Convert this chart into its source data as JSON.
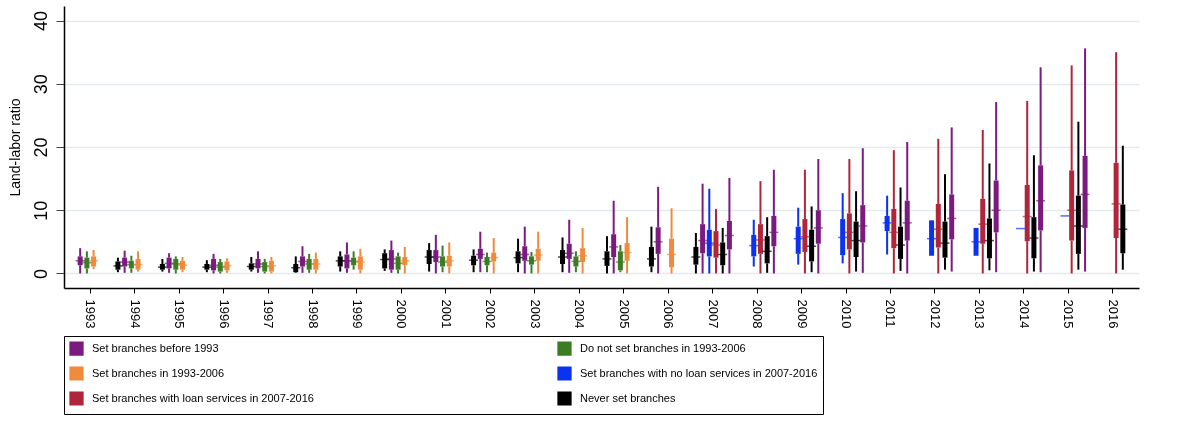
{
  "chart_data": {
    "type": "box",
    "ylabel": "Land-labor ratio",
    "categories": [
      "1993",
      "1994",
      "1995",
      "1996",
      "1997",
      "1998",
      "1999",
      "2000",
      "2001",
      "2002",
      "2003",
      "2004",
      "2005",
      "2006",
      "2007",
      "2008",
      "2009",
      "2010",
      "2011",
      "2012",
      "2013",
      "2014",
      "2015",
      "2016"
    ],
    "ylim": [
      -2.3,
      42.3
    ],
    "yticks": [
      0,
      10,
      20,
      30,
      40
    ],
    "grid": "y",
    "legend": "bottom",
    "series": [
      {
        "name": "Set branches before 1993",
        "color": "#7b1a7f",
        "boxes": [
          {
            "low": 0,
            "q1": 1.3,
            "median": 2.0,
            "q3": 2.7,
            "high": 4.0
          },
          {
            "low": 0.1,
            "q1": 1.1,
            "median": 1.8,
            "q3": 2.5,
            "high": 3.6
          },
          {
            "low": 0.1,
            "q1": 0.8,
            "median": 1.6,
            "q3": 2.5,
            "high": 3.2
          },
          {
            "low": 0,
            "q1": 0.5,
            "median": 1.3,
            "q3": 2.3,
            "high": 3.1
          },
          {
            "low": 0.1,
            "q1": 0.8,
            "median": 1.5,
            "q3": 2.3,
            "high": 3.5
          },
          {
            "low": 0.1,
            "q1": 1.1,
            "median": 1.9,
            "q3": 2.7,
            "high": 4.3
          },
          {
            "low": 0.1,
            "q1": 0.8,
            "median": 2.0,
            "q3": 3.0,
            "high": 4.9
          },
          {
            "low": 0.1,
            "q1": 0.6,
            "median": 2.3,
            "q3": 3.7,
            "high": 5.2
          },
          {
            "low": 0,
            "q1": 1.8,
            "median": 2.6,
            "q3": 3.7,
            "high": 6.1
          },
          {
            "low": 0.2,
            "q1": 2.3,
            "median": 3.0,
            "q3": 3.9,
            "high": 6.6
          },
          {
            "low": 0,
            "q1": 2.0,
            "median": 3.0,
            "q3": 4.3,
            "high": 7.4
          },
          {
            "low": 0.1,
            "q1": 2.3,
            "median": 3.2,
            "q3": 4.7,
            "high": 8.5
          },
          {
            "low": 0,
            "q1": 2.6,
            "median": 4.2,
            "q3": 6.2,
            "high": 11.5
          },
          {
            "low": 0,
            "q1": 3.1,
            "median": 5.0,
            "q3": 7.3,
            "high": 13.7
          },
          {
            "low": 0,
            "q1": 3.2,
            "median": 5.2,
            "q3": 7.8,
            "high": 14.2
          },
          null,
          null,
          null,
          null,
          null,
          null,
          null,
          null,
          null
        ]
      },
      {
        "name": "Do not set branches in 1993-2006",
        "color": "#3a7d22",
        "boxes": [
          {
            "low": 0,
            "q1": 0.8,
            "median": 1.7,
            "q3": 2.5,
            "high": 3.5
          },
          {
            "low": 0.1,
            "q1": 0.8,
            "median": 1.4,
            "q3": 2.0,
            "high": 2.8
          },
          {
            "low": 0,
            "q1": 0.6,
            "median": 1.5,
            "q3": 2.3,
            "high": 2.7
          },
          {
            "low": 0,
            "q1": 0.3,
            "median": 1.0,
            "q3": 1.8,
            "high": 2.3
          },
          {
            "low": 0,
            "q1": 0.3,
            "median": 1.1,
            "q3": 1.8,
            "high": 2.3
          },
          {
            "low": 0.1,
            "q1": 0.6,
            "median": 1.5,
            "q3": 2.3,
            "high": 3.1
          },
          {
            "low": 0.6,
            "q1": 1.3,
            "median": 1.9,
            "q3": 2.5,
            "high": 3.5
          },
          {
            "low": 0,
            "q1": 0.6,
            "median": 1.6,
            "q3": 2.7,
            "high": 3.3
          },
          {
            "low": 0.2,
            "q1": 1.1,
            "median": 1.8,
            "q3": 2.7,
            "high": 4.4
          },
          {
            "low": 0.2,
            "q1": 1.3,
            "median": 1.9,
            "q3": 2.6,
            "high": 3.3
          },
          {
            "low": 0,
            "q1": 1.4,
            "median": 2.0,
            "q3": 2.7,
            "high": 3.4
          },
          {
            "low": 0.2,
            "q1": 1.1,
            "median": 1.9,
            "q3": 2.7,
            "high": 3.5
          },
          {
            "low": 0.2,
            "q1": 0.5,
            "median": 1.8,
            "q3": 3.5,
            "high": 4.5
          },
          null,
          null,
          null,
          null,
          null,
          null,
          null,
          null,
          null,
          null,
          null
        ]
      },
      {
        "name": "Set branches in 1993-2006",
        "color": "#f08a3c",
        "boxes": [
          {
            "low": 0.7,
            "q1": 1.1,
            "median": 2.0,
            "q3": 2.7,
            "high": 3.7
          },
          {
            "low": 0.3,
            "q1": 0.6,
            "median": 1.4,
            "q3": 2.3,
            "high": 3.5
          },
          {
            "low": 0.2,
            "q1": 0.6,
            "median": 1.3,
            "q3": 2.0,
            "high": 2.6
          },
          {
            "low": 0.1,
            "q1": 0.5,
            "median": 1.2,
            "q3": 1.9,
            "high": 2.4
          },
          {
            "low": 0,
            "q1": 0.3,
            "median": 1.2,
            "q3": 2.0,
            "high": 2.6
          },
          {
            "low": 0,
            "q1": 0.6,
            "median": 1.5,
            "q3": 2.3,
            "high": 3.3
          },
          {
            "low": 0,
            "q1": 0.6,
            "median": 1.8,
            "q3": 2.7,
            "high": 3.9
          },
          {
            "low": 0,
            "q1": 1.3,
            "median": 2.0,
            "q3": 2.6,
            "high": 4.2
          },
          {
            "low": 0,
            "q1": 1.1,
            "median": 2.0,
            "q3": 2.8,
            "high": 4.9
          },
          {
            "low": 0,
            "q1": 1.9,
            "median": 2.5,
            "q3": 3.3,
            "high": 5.6
          },
          {
            "low": 0,
            "q1": 2.0,
            "median": 2.9,
            "q3": 3.9,
            "high": 6.6
          },
          {
            "low": 0,
            "q1": 1.8,
            "median": 2.8,
            "q3": 4.0,
            "high": 7.2
          },
          {
            "low": 0,
            "q1": 2.0,
            "median": 3.3,
            "q3": 4.8,
            "high": 8.9
          },
          {
            "low": 0,
            "q1": 1.0,
            "median": 3.0,
            "q3": 5.5,
            "high": 10.3
          },
          null,
          null,
          null,
          null,
          null,
          null,
          null,
          null,
          null,
          null
        ]
      },
      {
        "name": "Set branches with no loan services in 2007-2016",
        "color": "#0a32f0",
        "boxes": [
          null,
          null,
          null,
          null,
          null,
          null,
          null,
          null,
          null,
          null,
          null,
          null,
          null,
          null,
          {
            "low": 0,
            "q1": 2.7,
            "median": 4.8,
            "q3": 6.9,
            "high": 13.4
          },
          {
            "low": 1.1,
            "q1": 2.7,
            "median": 4.4,
            "q3": 6.1,
            "high": 8.5
          },
          {
            "low": 1.4,
            "q1": 3.1,
            "median": 5.5,
            "q3": 7.4,
            "high": 10.4
          },
          {
            "low": 1.6,
            "q1": 2.9,
            "median": 5.7,
            "q3": 8.6,
            "high": 12.7
          },
          {
            "low": 3.0,
            "q1": 6.7,
            "median": 8.0,
            "q3": 9.1,
            "high": 12.3
          },
          {
            "low": 2.8,
            "q1": 2.8,
            "median": 5.5,
            "q3": 8.4,
            "high": 8.4
          },
          {
            "low": 2.8,
            "q1": 2.8,
            "median": 5.0,
            "q3": 7.2,
            "high": 7.2
          },
          {
            "low": 7.1,
            "q1": 7.1,
            "median": 7.1,
            "q3": 7.1,
            "high": 7.1
          },
          {
            "low": 9.1,
            "q1": 9.1,
            "median": 9.1,
            "q3": 9.1,
            "high": 9.1
          },
          null
        ]
      },
      {
        "name": "Set branches with loan services in 2007-2016",
        "color": "#b0253a",
        "boxes": [
          null,
          null,
          null,
          null,
          null,
          null,
          null,
          null,
          null,
          null,
          null,
          null,
          null,
          null,
          {
            "low": 0,
            "q1": 2.5,
            "median": 4.5,
            "q3": 6.7,
            "high": 10.2
          },
          {
            "low": 0,
            "q1": 3.1,
            "median": 5.3,
            "q3": 7.8,
            "high": 14.6
          },
          {
            "low": 0,
            "q1": 3.4,
            "median": 5.8,
            "q3": 8.6,
            "high": 16.4
          },
          {
            "low": 0,
            "q1": 3.8,
            "median": 6.5,
            "q3": 9.5,
            "high": 18.1
          },
          {
            "low": 0,
            "q1": 4.0,
            "median": 6.5,
            "q3": 10.2,
            "high": 19.5
          },
          {
            "low": 0,
            "q1": 4.1,
            "median": 7.0,
            "q3": 11.0,
            "high": 21.3
          },
          {
            "low": 0,
            "q1": 4.7,
            "median": 7.8,
            "q3": 11.8,
            "high": 22.7
          },
          {
            "low": 0,
            "q1": 5.1,
            "median": 9.0,
            "q3": 14.0,
            "high": 27.3
          },
          {
            "low": 0,
            "q1": 5.2,
            "median": 10.0,
            "q3": 16.3,
            "high": 32.9
          },
          {
            "low": 0,
            "q1": 5.6,
            "median": 11.0,
            "q3": 17.5,
            "high": 35.0
          }
        ]
      },
      {
        "name": "Never set branches",
        "color": "#000000",
        "boxes": [
          null,
          {
            "low": 0.2,
            "q1": 0.6,
            "median": 1.2,
            "q3": 1.9,
            "high": 2.5
          },
          {
            "low": 0.3,
            "q1": 0.6,
            "median": 1.0,
            "q3": 1.5,
            "high": 2.3
          },
          {
            "low": 0.2,
            "q1": 0.6,
            "median": 1.0,
            "q3": 1.5,
            "high": 2.1
          },
          {
            "low": 0.3,
            "q1": 0.6,
            "median": 1.1,
            "q3": 1.6,
            "high": 2.6
          },
          {
            "low": 0.1,
            "q1": 0.2,
            "median": 0.9,
            "q3": 1.5,
            "high": 2.7
          },
          {
            "low": 0.3,
            "q1": 1.1,
            "median": 2.0,
            "q3": 2.7,
            "high": 3.5
          },
          {
            "low": 0.4,
            "q1": 0.8,
            "median": 2.2,
            "q3": 3.2,
            "high": 3.8
          },
          {
            "low": 0.3,
            "q1": 1.5,
            "median": 2.6,
            "q3": 3.7,
            "high": 4.8
          },
          {
            "low": 0.2,
            "q1": 1.3,
            "median": 2.1,
            "q3": 2.8,
            "high": 3.8
          },
          {
            "low": 0.2,
            "q1": 1.6,
            "median": 2.5,
            "q3": 3.5,
            "high": 5.5
          },
          {
            "low": 0.2,
            "q1": 1.5,
            "median": 2.6,
            "q3": 3.7,
            "high": 5.7
          },
          {
            "low": 0,
            "q1": 1.2,
            "median": 2.3,
            "q3": 3.5,
            "high": 5.9
          },
          {
            "low": 0.2,
            "q1": 1.1,
            "median": 2.3,
            "q3": 4.2,
            "high": 7.4
          },
          {
            "low": 0,
            "q1": 1.4,
            "median": 2.6,
            "q3": 4.2,
            "high": 6.4
          },
          null,
          null,
          null,
          null,
          null,
          null,
          null,
          null,
          null
        ]
      },
      {
        "color": "#000000",
        "boxes": [
          null,
          null,
          null,
          null,
          null,
          null,
          null,
          null,
          null,
          null,
          null,
          null,
          null,
          null,
          {
            "low": 0,
            "q1": 1.3,
            "median": 3.0,
            "q3": 4.9,
            "high": 7.2
          },
          {
            "low": 0.1,
            "q1": 1.6,
            "median": 3.5,
            "q3": 5.9,
            "high": 8.9
          },
          {
            "low": 0.2,
            "q1": 1.9,
            "median": 4.3,
            "q3": 6.9,
            "high": 10.6
          },
          {
            "low": 0.3,
            "q1": 2.6,
            "median": 5.2,
            "q3": 8.2,
            "high": 13.0
          },
          {
            "low": 0.4,
            "q1": 2.3,
            "median": 4.5,
            "q3": 7.4,
            "high": 13.6
          },
          {
            "low": 0.6,
            "q1": 2.5,
            "median": 4.8,
            "q3": 8.2,
            "high": 15.7
          },
          {
            "low": 0.5,
            "q1": 2.4,
            "median": 5.2,
            "q3": 8.7,
            "high": 17.4
          },
          {
            "low": 0.3,
            "q1": 2.4,
            "median": 5.6,
            "q3": 8.9,
            "high": 18.7
          },
          {
            "low": 0.6,
            "q1": 3.1,
            "median": 7.5,
            "q3": 12.3,
            "high": 24.0
          },
          {
            "low": 0.6,
            "q1": 3.2,
            "median": 7.0,
            "q3": 10.9,
            "high": 20.2
          }
        ]
      },
      {
        "color": "#7b1a7f",
        "boxes": [
          null,
          null,
          null,
          null,
          null,
          null,
          null,
          null,
          null,
          null,
          null,
          null,
          null,
          null,
          {
            "low": 0,
            "q1": 3.8,
            "median": 6.0,
            "q3": 8.3,
            "high": 15.1
          },
          {
            "low": 0,
            "q1": 4.3,
            "median": 6.5,
            "q3": 9.1,
            "high": 16.4
          },
          {
            "low": 0,
            "q1": 4.7,
            "median": 7.2,
            "q3": 10.0,
            "high": 18.1
          },
          {
            "low": 0.1,
            "q1": 4.9,
            "median": 7.5,
            "q3": 10.8,
            "high": 19.8
          },
          {
            "low": 0,
            "q1": 5.2,
            "median": 8.0,
            "q3": 11.5,
            "high": 20.8
          },
          {
            "low": 0.3,
            "q1": 5.4,
            "median": 8.7,
            "q3": 12.5,
            "high": 23.1
          },
          {
            "low": 0.2,
            "q1": 6.5,
            "median": 10.0,
            "q3": 14.7,
            "high": 27.1
          },
          {
            "low": 0.2,
            "q1": 6.8,
            "median": 11.5,
            "q3": 17.1,
            "high": 32.6
          },
          {
            "low": 0.3,
            "q1": 7.2,
            "median": 12.5,
            "q3": 18.6,
            "high": 35.6
          },
          null
        ]
      }
    ]
  }
}
